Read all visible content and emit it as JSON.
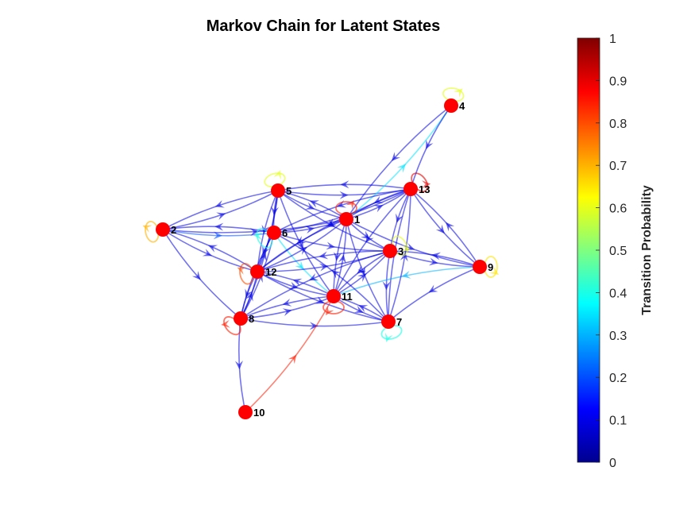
{
  "title": "Markov Chain for Latent States",
  "colorbar": {
    "label": "Transition Probability",
    "ticks": [
      "0",
      "0.1",
      "0.2",
      "0.3",
      "0.4",
      "0.5",
      "0.6",
      "0.7",
      "0.8",
      "0.9",
      "1"
    ],
    "range": [
      0,
      1
    ],
    "colormap": "jet"
  },
  "nodes": [
    {
      "id": "1"
    },
    {
      "id": "2"
    },
    {
      "id": "3"
    },
    {
      "id": "4"
    },
    {
      "id": "5"
    },
    {
      "id": "6"
    },
    {
      "id": "7"
    },
    {
      "id": "8"
    },
    {
      "id": "9"
    },
    {
      "id": "10"
    },
    {
      "id": "11"
    },
    {
      "id": "12"
    },
    {
      "id": "13"
    }
  ],
  "node_color": "#ff0000",
  "edges": [
    {
      "from": "5",
      "to": "13",
      "p": 0.1
    },
    {
      "from": "13",
      "to": "5",
      "p": 0.1
    },
    {
      "from": "5",
      "to": "2",
      "p": 0.1
    },
    {
      "from": "2",
      "to": "5",
      "p": 0.1
    },
    {
      "from": "2",
      "to": "6",
      "p": 0.2
    },
    {
      "from": "6",
      "to": "2",
      "p": 0.1
    },
    {
      "from": "2",
      "to": "1",
      "p": 0.1
    },
    {
      "from": "2",
      "to": "12",
      "p": 0.1
    },
    {
      "from": "12",
      "to": "2",
      "p": 0.1
    },
    {
      "from": "2",
      "to": "8",
      "p": 0.1
    },
    {
      "from": "5",
      "to": "6",
      "p": 0.1
    },
    {
      "from": "5",
      "to": "1",
      "p": 0.1
    },
    {
      "from": "1",
      "to": "5",
      "p": 0.1
    },
    {
      "from": "5",
      "to": "12",
      "p": 0.1
    },
    {
      "from": "5",
      "to": "3",
      "p": 0.1
    },
    {
      "from": "5",
      "to": "11",
      "p": 0.1
    },
    {
      "from": "6",
      "to": "1",
      "p": 0.1
    },
    {
      "from": "6",
      "to": "13",
      "p": 0.1
    },
    {
      "from": "6",
      "to": "12",
      "p": 0.1
    },
    {
      "from": "6",
      "to": "3",
      "p": 0.1
    },
    {
      "from": "6",
      "to": "11",
      "p": 0.35
    },
    {
      "from": "1",
      "to": "13",
      "p": 0.1
    },
    {
      "from": "13",
      "to": "1",
      "p": 0.1
    },
    {
      "from": "1",
      "to": "3",
      "p": 0.1
    },
    {
      "from": "1",
      "to": "12",
      "p": 0.1
    },
    {
      "from": "12",
      "to": "1",
      "p": 0.1
    },
    {
      "from": "1",
      "to": "11",
      "p": 0.1
    },
    {
      "from": "1",
      "to": "7",
      "p": 0.1
    },
    {
      "from": "1",
      "to": "9",
      "p": 0.1
    },
    {
      "from": "1",
      "to": "4",
      "p": 0.35
    },
    {
      "from": "4",
      "to": "13",
      "p": 0.1
    },
    {
      "from": "4",
      "to": "1",
      "p": 0.1
    },
    {
      "from": "13",
      "to": "3",
      "p": 0.1
    },
    {
      "from": "13",
      "to": "9",
      "p": 0.1
    },
    {
      "from": "9",
      "to": "13",
      "p": 0.1
    },
    {
      "from": "13",
      "to": "12",
      "p": 0.1
    },
    {
      "from": "13",
      "to": "11",
      "p": 0.1
    },
    {
      "from": "13",
      "to": "7",
      "p": 0.1
    },
    {
      "from": "13",
      "to": "6",
      "p": 0.1
    },
    {
      "from": "3",
      "to": "9",
      "p": 0.1
    },
    {
      "from": "3",
      "to": "12",
      "p": 0.1
    },
    {
      "from": "3",
      "to": "11",
      "p": 0.1
    },
    {
      "from": "3",
      "to": "7",
      "p": 0.1
    },
    {
      "from": "3",
      "to": "8",
      "p": 0.1
    },
    {
      "from": "9",
      "to": "11",
      "p": 0.3
    },
    {
      "from": "9",
      "to": "7",
      "p": 0.1
    },
    {
      "from": "9",
      "to": "3",
      "p": 0.1
    },
    {
      "from": "12",
      "to": "11",
      "p": 0.1
    },
    {
      "from": "11",
      "to": "12",
      "p": 0.1
    },
    {
      "from": "12",
      "to": "7",
      "p": 0.1
    },
    {
      "from": "12",
      "to": "8",
      "p": 0.1
    },
    {
      "from": "8",
      "to": "12",
      "p": 0.1
    },
    {
      "from": "12",
      "to": "3",
      "p": 0.1
    },
    {
      "from": "11",
      "to": "7",
      "p": 0.1
    },
    {
      "from": "7",
      "to": "11",
      "p": 0.1
    },
    {
      "from": "11",
      "to": "8",
      "p": 0.1
    },
    {
      "from": "8",
      "to": "11",
      "p": 0.1
    },
    {
      "from": "11",
      "to": "3",
      "p": 0.1
    },
    {
      "from": "11",
      "to": "1",
      "p": 0.1
    },
    {
      "from": "8",
      "to": "7",
      "p": 0.1
    },
    {
      "from": "8",
      "to": "10",
      "p": 0.1
    },
    {
      "from": "8",
      "to": "6",
      "p": 0.1
    },
    {
      "from": "8",
      "to": "5",
      "p": 0.1
    },
    {
      "from": "7",
      "to": "13",
      "p": 0.1
    },
    {
      "from": "7",
      "to": "6",
      "p": 0.1
    },
    {
      "from": "10",
      "to": "11",
      "p": 0.85
    },
    {
      "from": "12",
      "to": "5",
      "p": 0.1
    },
    {
      "from": "6",
      "to": "8",
      "p": 0.1
    }
  ],
  "self_loops": [
    {
      "node": "1",
      "p": 0.85
    },
    {
      "node": "2",
      "p": 0.7
    },
    {
      "node": "3",
      "p": 0.6
    },
    {
      "node": "4",
      "p": 0.6
    },
    {
      "node": "5",
      "p": 0.6
    },
    {
      "node": "6",
      "p": 0.4
    },
    {
      "node": "7",
      "p": 0.4
    },
    {
      "node": "8",
      "p": 0.85
    },
    {
      "node": "9",
      "p": 0.65
    },
    {
      "node": "11",
      "p": 0.85
    },
    {
      "node": "12",
      "p": 0.8
    },
    {
      "node": "13",
      "p": 0.9
    }
  ]
}
